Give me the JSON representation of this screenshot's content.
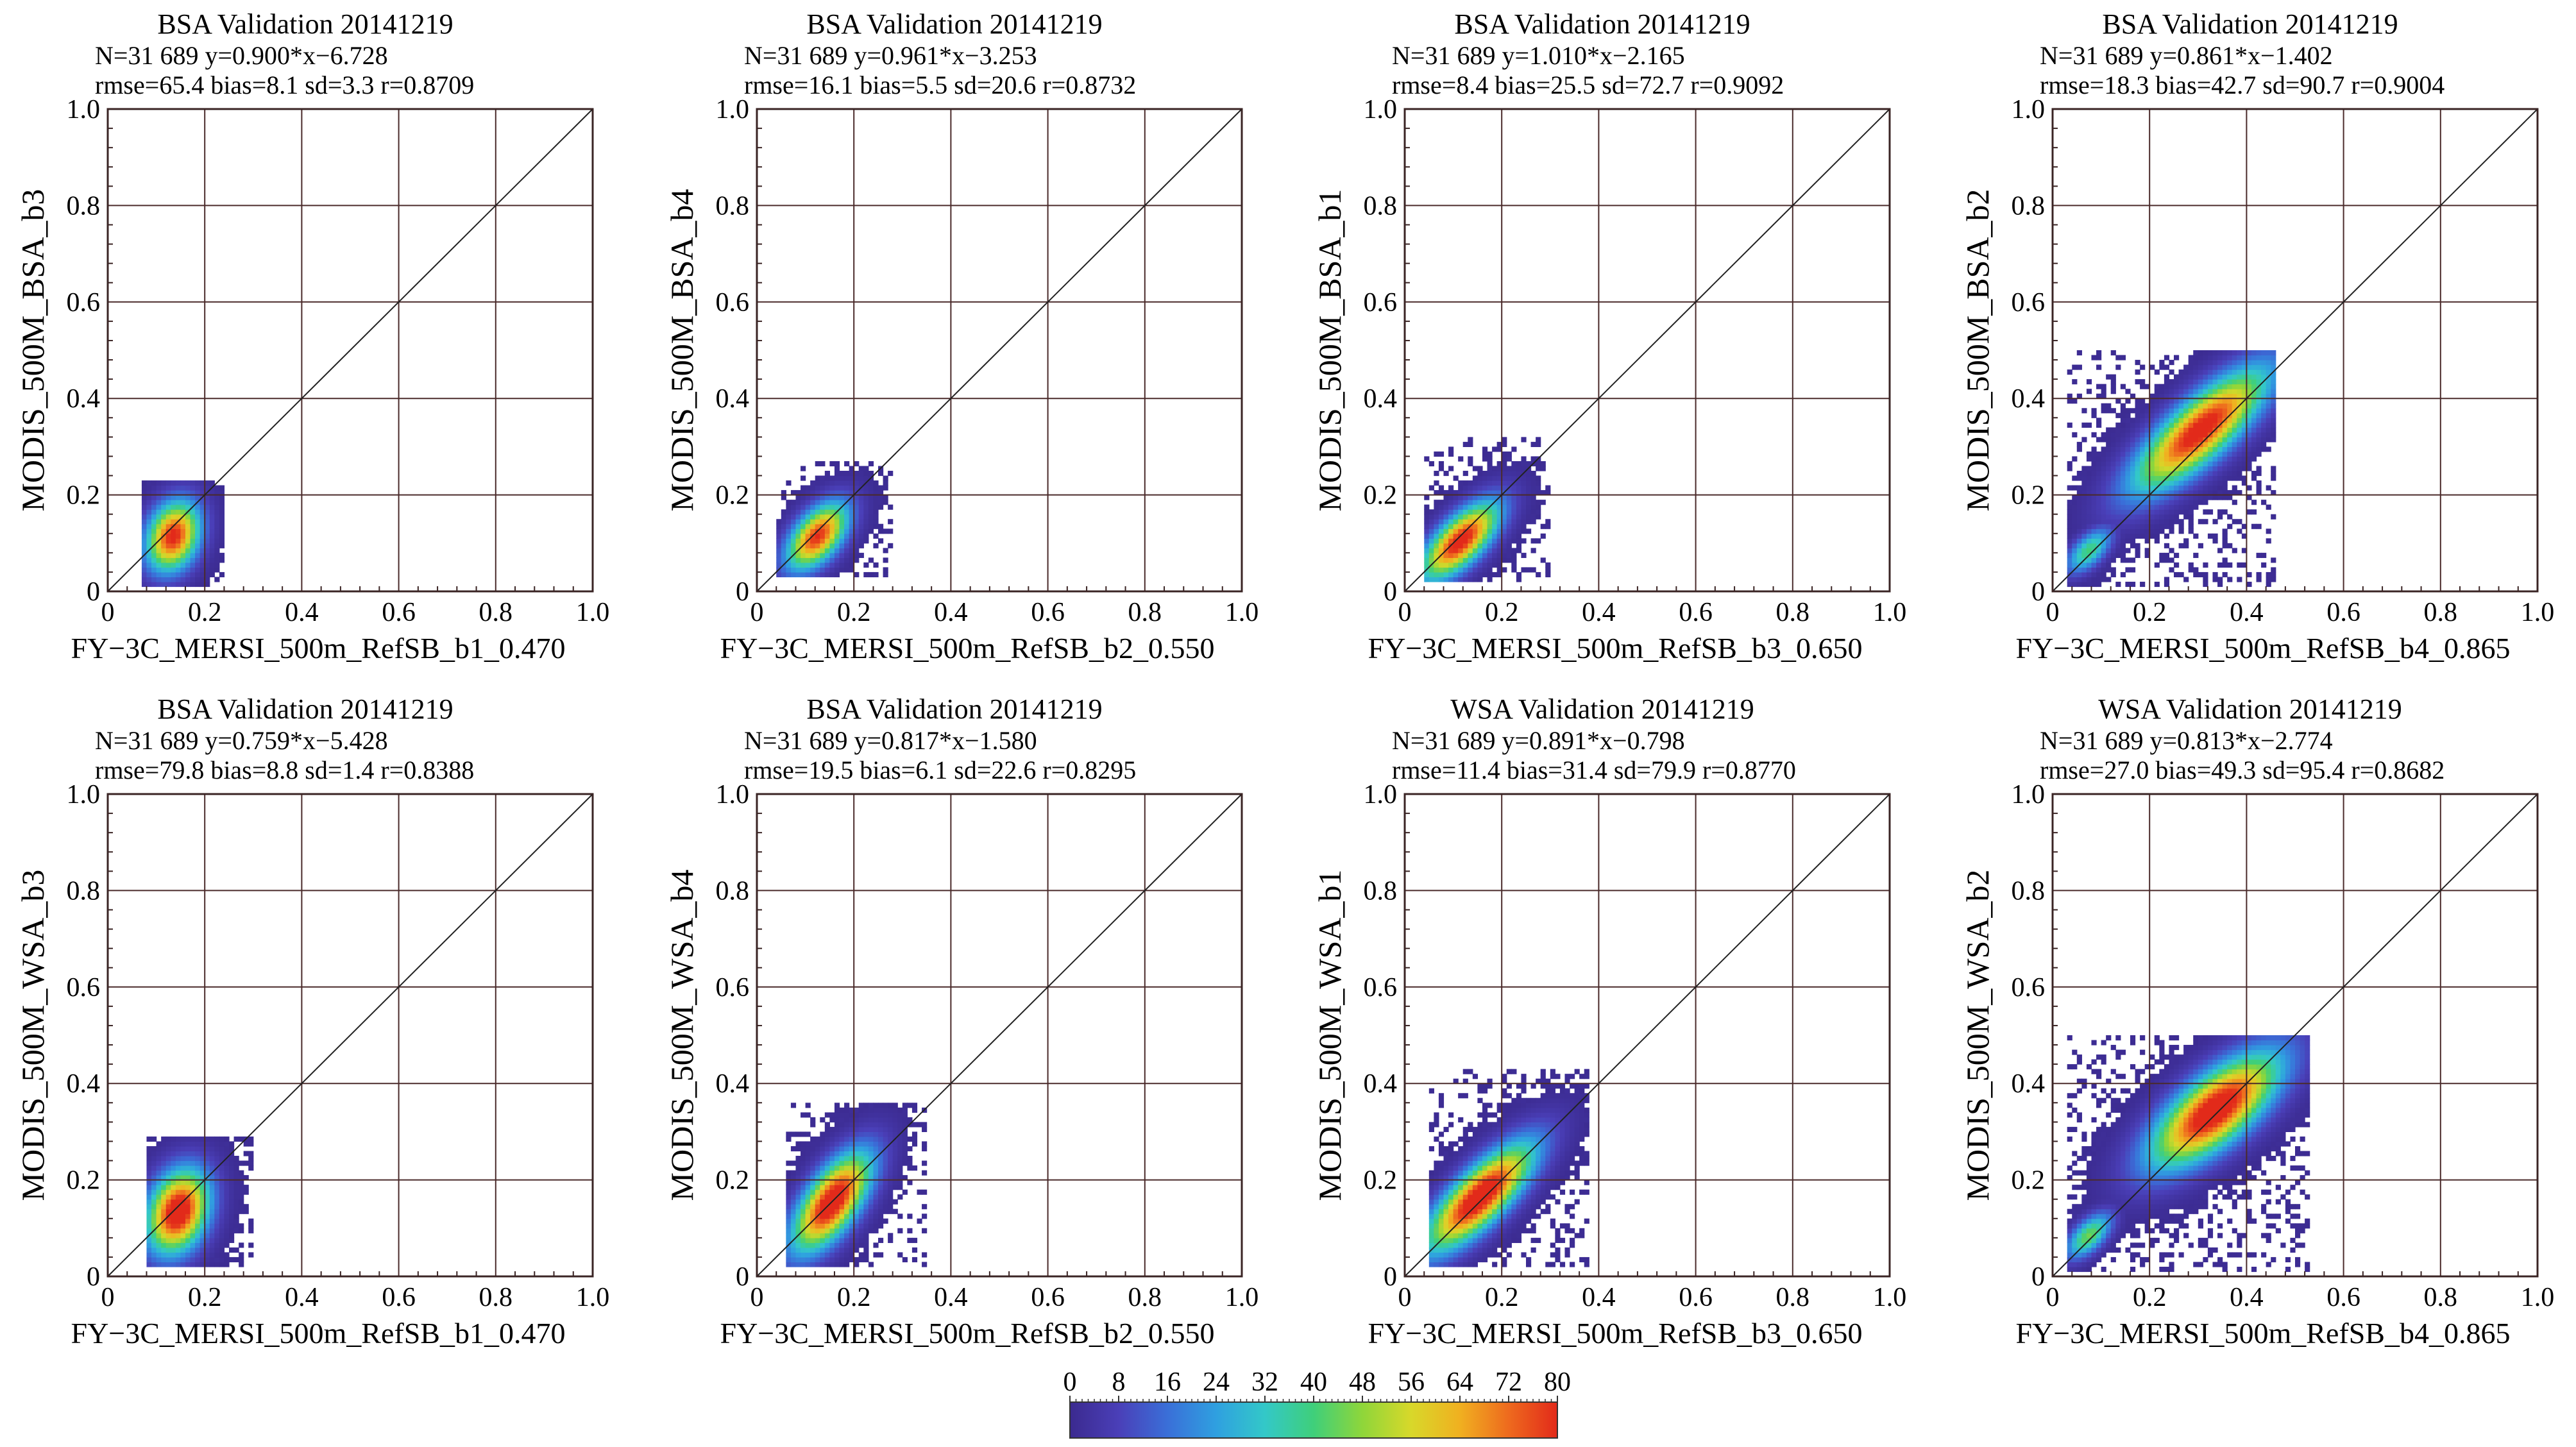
{
  "chart_data": [
    {
      "type": "heatmap",
      "title": "BSA Validation 20141219",
      "stats_line1": "N=31 689  y=0.900*x−6.728",
      "stats_line2": "rmse=65.4 bias=8.1 sd=3.3 r=0.8709",
      "xlabel": "FY−3C_MERSI_500m_RefSB_b1_0.470",
      "ylabel": "MODIS_500M_BSA_b3",
      "xlim": [
        0,
        1
      ],
      "ylim": [
        0,
        1
      ],
      "grid": true,
      "xticks": [
        "0",
        "0.2",
        "0.4",
        "0.6",
        "0.8",
        "1.0"
      ],
      "yticks": [
        "0",
        "0.2",
        "0.4",
        "0.6",
        "0.8",
        "1.0"
      ],
      "density_clusters": [
        {
          "cx": 0.13,
          "cy": 0.11,
          "sx": 0.035,
          "sy": 0.05,
          "angle": 70,
          "peak": 82
        }
      ],
      "scatter_extent": {
        "x": [
          0.07,
          0.24
        ],
        "y": [
          0.01,
          0.23
        ]
      }
    },
    {
      "type": "heatmap",
      "title": "BSA Validation 20141219",
      "stats_line1": "N=31 689  y=0.961*x−3.253",
      "stats_line2": "rmse=16.1 bias=5.5 sd=20.6 r=0.8732",
      "xlabel": "FY−3C_MERSI_500m_RefSB_b2_0.550",
      "ylabel": "MODIS_500M_BSA_b4",
      "xlim": [
        0,
        1
      ],
      "ylim": [
        0,
        1
      ],
      "grid": true,
      "xticks": [
        "0",
        "0.2",
        "0.4",
        "0.6",
        "0.8",
        "1.0"
      ],
      "yticks": [
        "0",
        "0.2",
        "0.4",
        "0.6",
        "0.8",
        "1.0"
      ],
      "density_clusters": [
        {
          "cx": 0.12,
          "cy": 0.11,
          "sx": 0.03,
          "sy": 0.055,
          "angle": 50,
          "peak": 80
        }
      ],
      "scatter_extent": {
        "x": [
          0.04,
          0.28
        ],
        "y": [
          0.03,
          0.27
        ]
      }
    },
    {
      "type": "heatmap",
      "title": "BSA Validation 20141219",
      "stats_line1": "N=31 689  y=1.010*x−2.165",
      "stats_line2": "rmse=8.4 bias=25.5 sd=72.7 r=0.9092",
      "xlabel": "FY−3C_MERSI_500m_RefSB_b3_0.650",
      "ylabel": "MODIS_500M_BSA_b1",
      "xlim": [
        0,
        1
      ],
      "ylim": [
        0,
        1
      ],
      "grid": true,
      "xticks": [
        "0",
        "0.2",
        "0.4",
        "0.6",
        "0.8",
        "1.0"
      ],
      "yticks": [
        "0",
        "0.2",
        "0.4",
        "0.6",
        "0.8",
        "1.0"
      ],
      "density_clusters": [
        {
          "cx": 0.11,
          "cy": 0.1,
          "sx": 0.03,
          "sy": 0.07,
          "angle": 45,
          "peak": 85
        }
      ],
      "scatter_extent": {
        "x": [
          0.04,
          0.3
        ],
        "y": [
          0.02,
          0.32
        ]
      }
    },
    {
      "type": "heatmap",
      "title": "BSA Validation 20141219",
      "stats_line1": "N=31 689  y=0.861*x−1.402",
      "stats_line2": "rmse=18.3 bias=42.7 sd=90.7 r=0.9004",
      "xlabel": "FY−3C_MERSI_500m_RefSB_b4_0.865",
      "ylabel": "MODIS_500M_BSA_b2",
      "xlim": [
        0,
        1
      ],
      "ylim": [
        0,
        1
      ],
      "grid": true,
      "xticks": [
        "0",
        "0.2",
        "0.4",
        "0.6",
        "0.8",
        "1.0"
      ],
      "yticks": [
        "0",
        "0.2",
        "0.4",
        "0.6",
        "0.8",
        "1.0"
      ],
      "density_clusters": [
        {
          "cx": 0.3,
          "cy": 0.33,
          "sx": 0.04,
          "sy": 0.12,
          "angle": 42,
          "peak": 85
        },
        {
          "cx": 0.07,
          "cy": 0.08,
          "sx": 0.02,
          "sy": 0.04,
          "angle": 45,
          "peak": 40
        }
      ],
      "scatter_extent": {
        "x": [
          0.03,
          0.46
        ],
        "y": [
          0.01,
          0.5
        ]
      }
    },
    {
      "type": "heatmap",
      "title": "BSA Validation 20141219",
      "stats_line1": "N=31 689  y=0.759*x−5.428",
      "stats_line2": "rmse=79.8 bias=8.8 sd=1.4 r=0.8388",
      "xlabel": "FY−3C_MERSI_500m_RefSB_b1_0.470",
      "ylabel": "MODIS_500M_WSA_b3",
      "xlim": [
        0,
        1
      ],
      "ylim": [
        0,
        1
      ],
      "grid": true,
      "xticks": [
        "0",
        "0.2",
        "0.4",
        "0.6",
        "0.8",
        "1.0"
      ],
      "yticks": [
        "0",
        "0.2",
        "0.4",
        "0.6",
        "0.8",
        "1.0"
      ],
      "density_clusters": [
        {
          "cx": 0.14,
          "cy": 0.13,
          "sx": 0.04,
          "sy": 0.06,
          "angle": 70,
          "peak": 90
        }
      ],
      "scatter_extent": {
        "x": [
          0.08,
          0.3
        ],
        "y": [
          0.02,
          0.29
        ]
      }
    },
    {
      "type": "heatmap",
      "title": "BSA Validation 20141219",
      "stats_line1": "N=31 689  y=0.817*x−1.580",
      "stats_line2": "rmse=19.5 bias=6.1 sd=22.6 r=0.8295",
      "xlabel": "FY−3C_MERSI_500m_RefSB_b2_0.550",
      "ylabel": "MODIS_500M_WSA_b4",
      "xlim": [
        0,
        1
      ],
      "ylim": [
        0,
        1
      ],
      "grid": true,
      "xticks": [
        "0",
        "0.2",
        "0.4",
        "0.6",
        "0.8",
        "1.0"
      ],
      "yticks": [
        "0",
        "0.2",
        "0.4",
        "0.6",
        "0.8",
        "1.0"
      ],
      "density_clusters": [
        {
          "cx": 0.15,
          "cy": 0.15,
          "sx": 0.035,
          "sy": 0.08,
          "angle": 55,
          "peak": 90
        }
      ],
      "scatter_extent": {
        "x": [
          0.06,
          0.35
        ],
        "y": [
          0.02,
          0.36
        ]
      }
    },
    {
      "type": "heatmap",
      "title": "WSA Validation 20141219",
      "stats_line1": "N=31 689  y=0.891*x−0.798",
      "stats_line2": "rmse=11.4 bias=31.4 sd=79.9 r=0.8770",
      "xlabel": "FY−3C_MERSI_500m_RefSB_b3_0.650",
      "ylabel": "MODIS_500M_WSA_b1",
      "xlim": [
        0,
        1
      ],
      "ylim": [
        0,
        1
      ],
      "grid": true,
      "xticks": [
        "0",
        "0.2",
        "0.4",
        "0.6",
        "0.8",
        "1.0"
      ],
      "yticks": [
        "0",
        "0.2",
        "0.4",
        "0.6",
        "0.8",
        "1.0"
      ],
      "density_clusters": [
        {
          "cx": 0.15,
          "cy": 0.16,
          "sx": 0.035,
          "sy": 0.1,
          "angle": 45,
          "peak": 90
        }
      ],
      "scatter_extent": {
        "x": [
          0.05,
          0.38
        ],
        "y": [
          0.02,
          0.43
        ]
      }
    },
    {
      "type": "heatmap",
      "title": "WSA Validation 20141219",
      "stats_line1": "N=31 689  y=0.813*x−2.774",
      "stats_line2": "rmse=27.0 bias=49.3 sd=95.4 r=0.8682",
      "xlabel": "FY−3C_MERSI_500m_RefSB_b4_0.865",
      "ylabel": "MODIS_500M_WSA_b2",
      "xlim": [
        0,
        1
      ],
      "ylim": [
        0,
        1
      ],
      "grid": true,
      "xticks": [
        "0",
        "0.2",
        "0.4",
        "0.6",
        "0.8",
        "1.0"
      ],
      "yticks": [
        "0",
        "0.2",
        "0.4",
        "0.6",
        "0.8",
        "1.0"
      ],
      "density_clusters": [
        {
          "cx": 0.33,
          "cy": 0.34,
          "sx": 0.045,
          "sy": 0.11,
          "angle": 40,
          "peak": 90
        },
        {
          "cx": 0.07,
          "cy": 0.08,
          "sx": 0.02,
          "sy": 0.04,
          "angle": 45,
          "peak": 45
        }
      ],
      "scatter_extent": {
        "x": [
          0.03,
          0.53
        ],
        "y": [
          0.01,
          0.5
        ]
      }
    }
  ],
  "colorbar": {
    "ticks": [
      "0",
      "8",
      "16",
      "24",
      "32",
      "40",
      "48",
      "56",
      "64",
      "72",
      "80"
    ],
    "range": [
      0,
      80
    ],
    "colors": [
      "#3b2a8f",
      "#4a3fb8",
      "#3a6fd8",
      "#2fa0e0",
      "#33c8c8",
      "#3fcf7a",
      "#8fd63a",
      "#d8d82a",
      "#f0b020",
      "#ee6a1e",
      "#e22a1a"
    ]
  }
}
